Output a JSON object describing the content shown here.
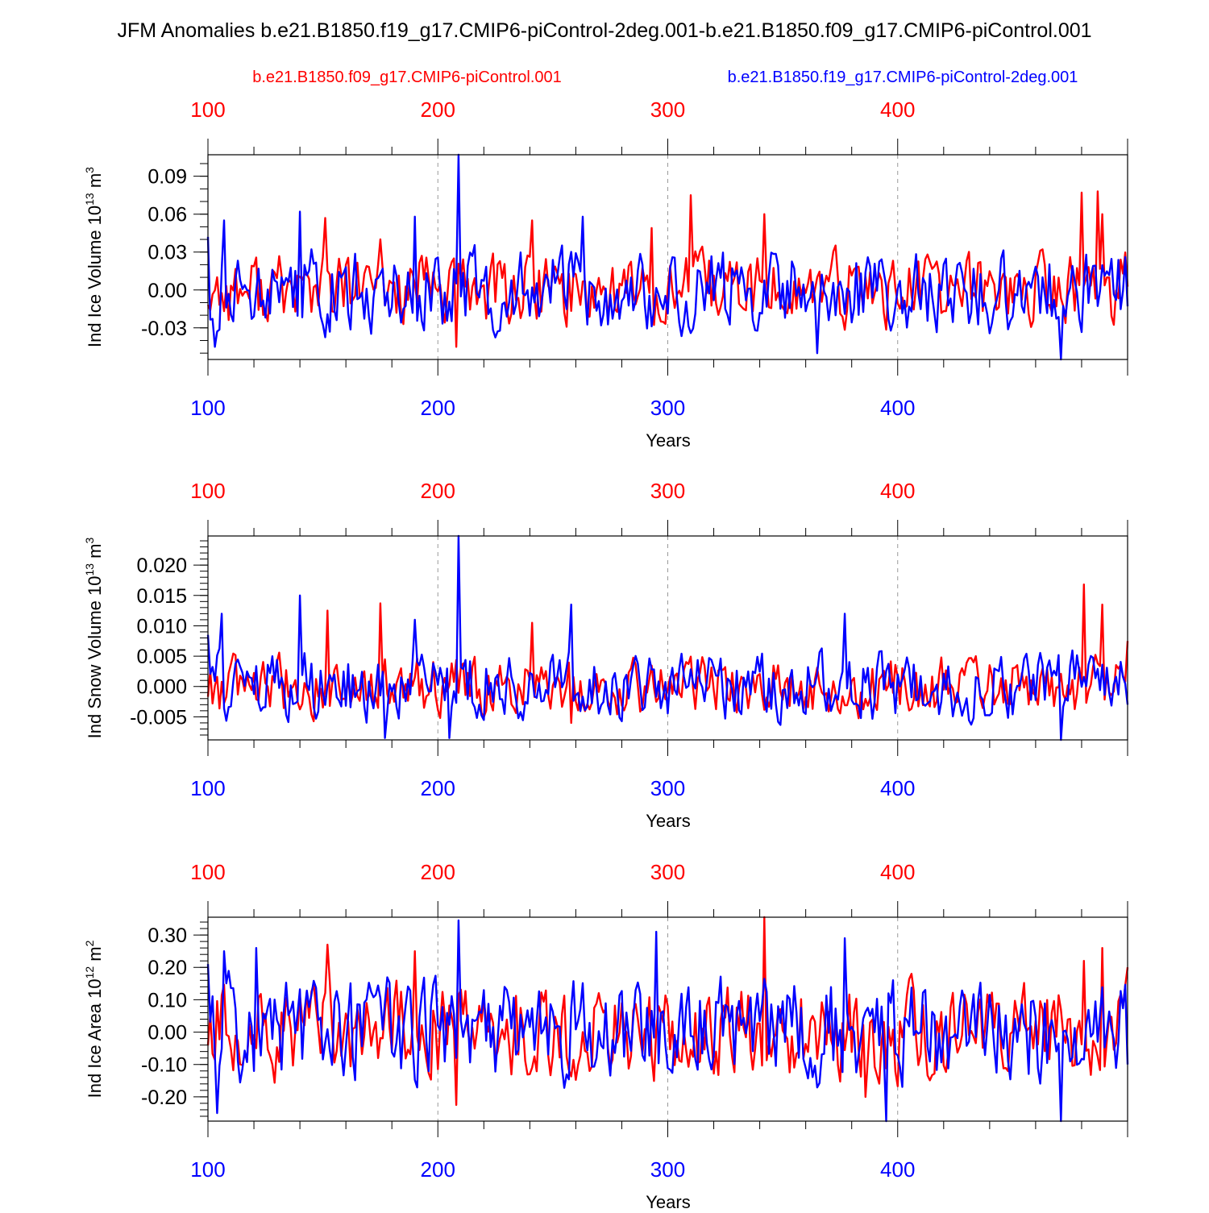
{
  "title": "JFM Anomalies b.e21.B1850.f19_g17.CMIP6-piControl-2deg.001-b.e21.B1850.f09_g17.CMIP6-piControl.001",
  "legend": {
    "red_label": "b.e21.B1850.f09_g17.CMIP6-piControl.001",
    "blue_label": "b.e21.B1850.f19_g17.CMIP6-piControl-2deg.001"
  },
  "colors": {
    "red": "#ff0000",
    "blue": "#0000ff",
    "axis": "#000000",
    "grid": "#999999"
  },
  "chart_data": [
    {
      "type": "line",
      "title": "",
      "ylabel_main": "Ind Ice Volume 10",
      "ylabel_exp": "13",
      "ylabel_unit": " m",
      "ylabel_unit_exp": "3",
      "xlabel": "Years",
      "xlim": [
        100,
        500
      ],
      "ylim": [
        -0.055,
        0.107
      ],
      "yticks": [
        -0.03,
        0.0,
        0.03,
        0.06,
        0.09
      ],
      "ytick_labels": [
        "-0.03",
        "0.00",
        "0.03",
        "0.06",
        "0.09"
      ],
      "yminor_step": 0.01,
      "xticks": [
        100,
        200,
        300,
        400
      ],
      "xtick_labels": [
        "100",
        "200",
        "300",
        "400"
      ],
      "seed": 11,
      "series": [
        {
          "name": "b.e21.B1850.f09_g17.CMIP6-piControl.001",
          "color": "red",
          "amp": 0.018,
          "peaks": [
            [
              151,
              0.057
            ],
            [
              175,
              0.04
            ],
            [
              208,
              -0.045
            ],
            [
              241,
              0.055
            ],
            [
              293,
              0.049
            ],
            [
              310,
              0.075
            ],
            [
              342,
              0.06
            ],
            [
              480,
              0.077
            ],
            [
              487,
              0.078
            ],
            [
              489,
              0.06
            ],
            [
              497,
              0.024
            ]
          ]
        },
        {
          "name": "b.e21.B1850.f19_g17.CMIP6-piControl-2deg.001",
          "color": "blue",
          "amp": 0.02,
          "peaks": [
            [
              100,
              0.042
            ],
            [
              103,
              -0.045
            ],
            [
              107,
              0.055
            ],
            [
              140,
              0.062
            ],
            [
              190,
              0.058
            ],
            [
              209,
              0.107
            ],
            [
              263,
              0.058
            ],
            [
              365,
              -0.05
            ],
            [
              471,
              -0.055
            ],
            [
              500,
              -0.013
            ]
          ]
        }
      ]
    },
    {
      "type": "line",
      "title": "",
      "ylabel_main": "Ind Snow Volume 10",
      "ylabel_exp": "13",
      "ylabel_unit": " m",
      "ylabel_unit_exp": "3",
      "xlabel": "Years",
      "xlim": [
        100,
        500
      ],
      "ylim": [
        -0.0088,
        0.0248
      ],
      "yticks": [
        -0.005,
        0.0,
        0.005,
        0.01,
        0.015,
        0.02
      ],
      "ytick_labels": [
        "-0.005",
        "0.000",
        "0.005",
        "0.010",
        "0.015",
        "0.020"
      ],
      "yminor_step": 0.001,
      "xticks": [
        100,
        200,
        300,
        400
      ],
      "xtick_labels": [
        "100",
        "200",
        "300",
        "400"
      ],
      "seed": 23,
      "series": [
        {
          "name": "b.e21.B1850.f09_g17.CMIP6-piControl.001",
          "color": "red",
          "amp": 0.003,
          "peaks": [
            [
              152,
              0.0125
            ],
            [
              175,
              0.0137
            ],
            [
              241,
              0.0105
            ],
            [
              258,
              -0.006
            ],
            [
              481,
              0.0168
            ],
            [
              489,
              0.0135
            ],
            [
              500,
              0.0075
            ]
          ]
        },
        {
          "name": "b.e21.B1850.f19_g17.CMIP6-piControl-2deg.001",
          "color": "blue",
          "amp": 0.0035,
          "peaks": [
            [
              100,
              0.0085
            ],
            [
              106,
              0.012
            ],
            [
              140,
              0.015
            ],
            [
              177,
              -0.0085
            ],
            [
              190,
              0.011
            ],
            [
              205,
              -0.0085
            ],
            [
              209,
              0.0248
            ],
            [
              258,
              0.0135
            ],
            [
              377,
              0.012
            ],
            [
              471,
              -0.0088
            ],
            [
              500,
              -0.003
            ]
          ]
        }
      ]
    },
    {
      "type": "line",
      "title": "",
      "ylabel_main": "Ind Ice Area 10",
      "ylabel_exp": "12",
      "ylabel_unit": " m",
      "ylabel_unit_exp": "2",
      "xlabel": "Years",
      "xlim": [
        100,
        500
      ],
      "ylim": [
        -0.275,
        0.355
      ],
      "yticks": [
        -0.2,
        -0.1,
        0.0,
        0.1,
        0.2,
        0.3
      ],
      "ytick_labels": [
        "-0.20",
        "-0.10",
        "0.00",
        "0.10",
        "0.20",
        "0.30"
      ],
      "yminor_step": 0.02,
      "xticks": [
        100,
        200,
        300,
        400
      ],
      "xtick_labels": [
        "100",
        "200",
        "300",
        "400"
      ],
      "seed": 37,
      "series": [
        {
          "name": "b.e21.B1850.f09_g17.CMIP6-piControl.001",
          "color": "red",
          "amp": 0.09,
          "peaks": [
            [
              152,
              0.27
            ],
            [
              190,
              0.25
            ],
            [
              208,
              -0.225
            ],
            [
              342,
              0.355
            ],
            [
              386,
              -0.2
            ],
            [
              481,
              0.22
            ],
            [
              489,
              0.26
            ],
            [
              500,
              0.2
            ]
          ]
        },
        {
          "name": "b.e21.B1850.f19_g17.CMIP6-piControl-2deg.001",
          "color": "blue",
          "amp": 0.1,
          "peaks": [
            [
              100,
              0.21
            ],
            [
              104,
              -0.25
            ],
            [
              107,
              0.25
            ],
            [
              121,
              0.26
            ],
            [
              209,
              0.345
            ],
            [
              295,
              0.31
            ],
            [
              377,
              0.29
            ],
            [
              395,
              -0.275
            ],
            [
              471,
              -0.275
            ],
            [
              500,
              -0.1
            ]
          ]
        }
      ]
    }
  ]
}
